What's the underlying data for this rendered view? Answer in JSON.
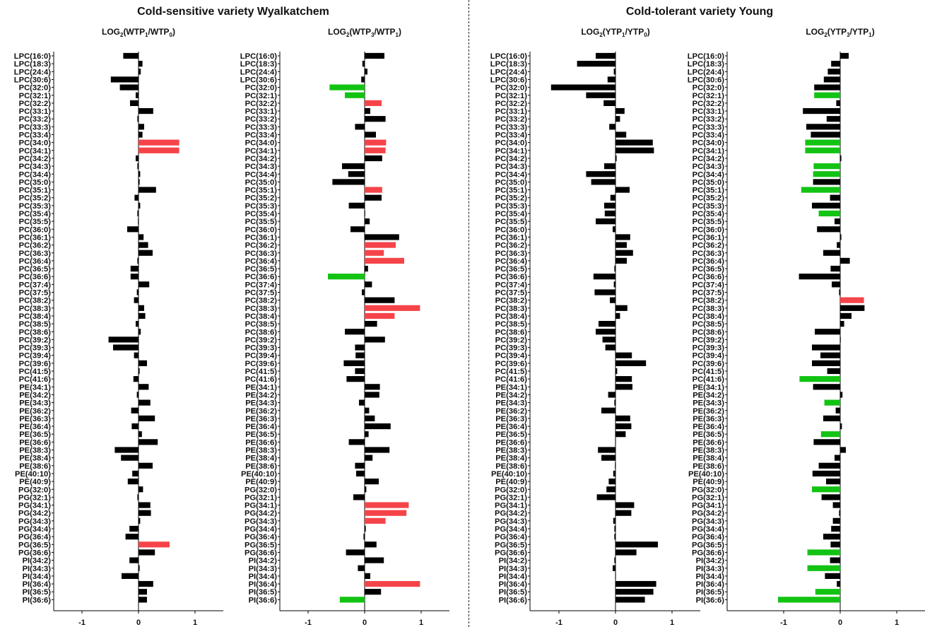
{
  "groups": [
    {
      "title": "Cold-sensitive variety Wyalkatchem"
    },
    {
      "title": "Cold-tolerant variety Young"
    }
  ],
  "colors": {
    "increase": "#f54449",
    "decrease": "#13c313",
    "neutral": "#000000"
  },
  "chart_data": [
    {
      "type": "bar",
      "orientation": "horizontal",
      "title": "LOG2(WTP1/WTP0)",
      "title_parts": {
        "prefix": "LOG",
        "base": "2",
        "open": "(WTP",
        "s1": "1",
        "mid": "/WTP",
        "s2": "0",
        "close": ")"
      },
      "xlim": [
        -1.5,
        1.5
      ],
      "xticks": [
        "-1",
        "0",
        "1"
      ],
      "grid": false,
      "categories": [
        "LPC(16:0)",
        "LPC(18:3)",
        "LPC(24:4)",
        "LPC(30:6)",
        "PC(32:0)",
        "PC(32:1)",
        "PC(32:2)",
        "PC(33:1)",
        "PC(33:2)",
        "PC(33:3)",
        "PC(33:4)",
        "PC(34:0)",
        "PC(34:1)",
        "PC(34:2)",
        "PC(34:3)",
        "PC(34:4)",
        "PC(35:0)",
        "PC(35:1)",
        "PC(35:2)",
        "PC(35:3)",
        "PC(35:4)",
        "PC(35:5)",
        "PC(36:0)",
        "PC(36:1)",
        "PC(36:2)",
        "PC(36:3)",
        "PC(36:4)",
        "PC(36:5)",
        "PC(36:6)",
        "PC(37:4)",
        "PC(37:5)",
        "PC(38:2)",
        "PC(38:3)",
        "PC(38:4)",
        "PC(38:5)",
        "PC(38:6)",
        "PC(39:2)",
        "PC(39:3)",
        "PC(39:4)",
        "PC(39:6)",
        "PC(41:5)",
        "PC(41:6)",
        "PE(34:1)",
        "PE(34:2)",
        "PE(34:3)",
        "PE(36:2)",
        "PE(36:3)",
        "PE(36:4)",
        "PE(36:5)",
        "PE(36:6)",
        "PE(38:3)",
        "PE(38:4)",
        "PE(38:6)",
        "PE(40:10)",
        "PE(40:9)",
        "PG(32:0)",
        "PG(32:1)",
        "PG(34:1)",
        "PG(34:2)",
        "PG(34:3)",
        "PG(34:4)",
        "PG(36:4)",
        "PG(36:5)",
        "PG(36:6)",
        "PI(34:2)",
        "PI(34:3)",
        "PI(34:4)",
        "PI(36:4)",
        "PI(36:5)",
        "PI(36:6)"
      ],
      "values": [
        -0.27,
        0.07,
        0.04,
        -0.49,
        -0.33,
        -0.05,
        -0.15,
        0.26,
        -0.02,
        0.1,
        0.07,
        0.72,
        0.72,
        -0.05,
        -0.02,
        0.03,
        0.02,
        0.31,
        -0.07,
        0.03,
        -0.02,
        -0.01,
        -0.2,
        0.09,
        0.17,
        0.25,
        -0.02,
        -0.14,
        -0.14,
        0.19,
        -0.03,
        -0.08,
        0.1,
        0.12,
        -0.05,
        0.04,
        -0.53,
        -0.45,
        -0.08,
        0.15,
        0.02,
        -0.09,
        0.18,
        -0.03,
        0.21,
        -0.13,
        0.29,
        -0.12,
        0.06,
        0.34,
        -0.42,
        -0.31,
        0.25,
        -0.11,
        -0.19,
        0.08,
        -0.02,
        0.21,
        0.22,
        0.03,
        -0.16,
        -0.23,
        0.55,
        0.29,
        -0.16,
        0.02,
        -0.3,
        0.26,
        0.15,
        0.15
      ],
      "colors": [
        "n",
        "n",
        "n",
        "n",
        "n",
        "n",
        "n",
        "n",
        "n",
        "n",
        "n",
        "r",
        "r",
        "n",
        "n",
        "n",
        "n",
        "n",
        "n",
        "n",
        "n",
        "n",
        "n",
        "n",
        "n",
        "n",
        "n",
        "n",
        "n",
        "n",
        "n",
        "n",
        "n",
        "n",
        "n",
        "n",
        "n",
        "n",
        "n",
        "n",
        "n",
        "n",
        "n",
        "n",
        "n",
        "n",
        "n",
        "n",
        "n",
        "n",
        "n",
        "n",
        "n",
        "n",
        "n",
        "n",
        "n",
        "n",
        "n",
        "n",
        "n",
        "n",
        "r",
        "n",
        "n",
        "n",
        "n",
        "n",
        "n",
        "n"
      ]
    },
    {
      "type": "bar",
      "orientation": "horizontal",
      "title": "LOG2(WTP3/WTP1)",
      "title_parts": {
        "prefix": "LOG",
        "base": "2",
        "open": "(WTP",
        "s1": "3",
        "mid": "/WTP",
        "s2": "1",
        "close": ")"
      },
      "xlim": [
        -1.5,
        1.5
      ],
      "xticks": [
        "-1",
        "0",
        "1"
      ],
      "grid": false,
      "categories": [
        "LPC(16:0)",
        "LPC(18:3)",
        "LPC(24:4)",
        "LPC(30:6)",
        "PC(32:0)",
        "PC(32:1)",
        "PC(32:2)",
        "PC(33:1)",
        "PC(33:2)",
        "PC(33:3)",
        "PC(33:4)",
        "PC(34:0)",
        "PC(34:1)",
        "PC(34:2)",
        "PC(34:3)",
        "PC(34:4)",
        "PC(35:0)",
        "PC(35:1)",
        "PC(35:2)",
        "PC(35:3)",
        "PC(35:4)",
        "PC(35:5)",
        "PC(36:0)",
        "PC(36:1)",
        "PC(36:2)",
        "PC(36:3)",
        "PC(36:4)",
        "PC(36:5)",
        "PC(36:6)",
        "PC(37:4)",
        "PC(37:5)",
        "PC(38:2)",
        "PC(38:3)",
        "PC(38:4)",
        "PC(38:5)",
        "PC(38:6)",
        "PC(39:2)",
        "PC(39:3)",
        "PC(39:4)",
        "PC(39:6)",
        "PC(41:5)",
        "PC(41:6)",
        "PE(34:1)",
        "PE(34:2)",
        "PE(34:3)",
        "PE(36:2)",
        "PE(36:3)",
        "PE(36:4)",
        "PE(36:5)",
        "PE(36:6)",
        "PE(38:3)",
        "PE(38:4)",
        "PE(38:6)",
        "PE(40:10)",
        "PE(40:9)",
        "PG(32:0)",
        "PG(32:1)",
        "PG(34:1)",
        "PG(34:2)",
        "PG(34:3)",
        "PG(34:4)",
        "PG(36:4)",
        "PG(36:5)",
        "PG(36:6)",
        "PI(34:2)",
        "PI(34:3)",
        "PI(34:4)",
        "PI(36:4)",
        "PI(36:5)",
        "PI(36:6)"
      ],
      "values": [
        0.35,
        -0.04,
        0.05,
        -0.06,
        -0.62,
        -0.35,
        0.3,
        0.1,
        0.37,
        -0.17,
        0.2,
        0.38,
        0.37,
        0.31,
        -0.4,
        -0.29,
        -0.57,
        0.31,
        0.3,
        -0.28,
        0.01,
        0.09,
        -0.25,
        0.61,
        0.55,
        0.34,
        0.7,
        0.06,
        -0.65,
        0.13,
        -0.05,
        0.53,
        0.98,
        0.53,
        0.22,
        -0.35,
        0.36,
        -0.17,
        -0.16,
        -0.37,
        -0.17,
        -0.32,
        0.27,
        0.26,
        -0.1,
        0.08,
        0.18,
        0.46,
        0.07,
        -0.28,
        0.44,
        0.14,
        -0.17,
        -0.15,
        0.25,
        0.03,
        -0.2,
        0.78,
        0.74,
        0.37,
        0.02,
        -0.02,
        0.21,
        -0.33,
        0.34,
        -0.12,
        0.1,
        0.98,
        0.29,
        -0.44
      ],
      "colors": [
        "n",
        "n",
        "n",
        "n",
        "g",
        "g",
        "r",
        "n",
        "n",
        "n",
        "n",
        "r",
        "r",
        "n",
        "n",
        "n",
        "n",
        "r",
        "n",
        "n",
        "n",
        "n",
        "n",
        "n",
        "r",
        "r",
        "r",
        "n",
        "g",
        "n",
        "n",
        "n",
        "r",
        "r",
        "n",
        "n",
        "n",
        "n",
        "n",
        "n",
        "n",
        "n",
        "n",
        "n",
        "n",
        "n",
        "n",
        "n",
        "n",
        "n",
        "n",
        "n",
        "n",
        "n",
        "n",
        "n",
        "n",
        "r",
        "r",
        "r",
        "n",
        "n",
        "n",
        "n",
        "n",
        "n",
        "n",
        "r",
        "n",
        "g"
      ]
    },
    {
      "type": "bar",
      "orientation": "horizontal",
      "title": "LOG2(YTP1/YTP0)",
      "title_parts": {
        "prefix": "LOG",
        "base": "2",
        "open": "(YTP",
        "s1": "1",
        "mid": "/YTP",
        "s2": "0",
        "close": ")"
      },
      "xlim": [
        -1.5,
        1.5
      ],
      "xticks": [
        "-1",
        "0",
        "1"
      ],
      "grid": false,
      "categories": [
        "LPC(16:0)",
        "LPC(18:3)",
        "LPC(24:4)",
        "LPC(30:6)",
        "PC(32:0)",
        "PC(32:1)",
        "PC(32:2)",
        "PC(33:1)",
        "PC(33:2)",
        "PC(33:3)",
        "PC(33:4)",
        "PC(34:0)",
        "PC(34:1)",
        "PC(34:2)",
        "PC(34:3)",
        "PC(34:4)",
        "PC(35:0)",
        "PC(35:1)",
        "PC(35:2)",
        "PC(35:3)",
        "PC(35:4)",
        "PC(35:5)",
        "PC(36:0)",
        "PC(36:1)",
        "PC(36:2)",
        "PC(36:3)",
        "PC(36:4)",
        "PC(36:5)",
        "PC(36:6)",
        "PC(37:4)",
        "PC(37:5)",
        "PC(38:2)",
        "PC(38:3)",
        "PC(38:4)",
        "PC(38:5)",
        "PC(38:6)",
        "PC(39:2)",
        "PC(39:3)",
        "PC(39:4)",
        "PC(39:6)",
        "PC(41:5)",
        "PC(41:6)",
        "PE(34:1)",
        "PE(34:2)",
        "PE(34:3)",
        "PE(36:2)",
        "PE(36:3)",
        "PE(36:4)",
        "PE(36:5)",
        "PE(36:6)",
        "PE(38:3)",
        "PE(38:4)",
        "PE(38:6)",
        "PE(40:10)",
        "PE(40:9)",
        "PG(32:0)",
        "PG(32:1)",
        "PG(34:1)",
        "PG(34:2)",
        "PG(34:3)",
        "PG(34:4)",
        "PG(36:4)",
        "PG(36:5)",
        "PG(36:6)",
        "PI(34:2)",
        "PI(34:3)",
        "PI(34:4)",
        "PI(36:4)",
        "PI(36:5)",
        "PI(36:6)"
      ],
      "values": [
        -0.35,
        -0.68,
        -0.03,
        -0.14,
        -1.14,
        -0.52,
        -0.21,
        0.16,
        0.08,
        -0.11,
        0.19,
        0.66,
        0.68,
        0.02,
        -0.2,
        -0.52,
        -0.43,
        0.25,
        -0.09,
        -0.2,
        -0.19,
        -0.35,
        -0.05,
        0.26,
        0.2,
        0.31,
        0.2,
        -0.02,
        -0.39,
        -0.03,
        -0.37,
        -0.1,
        0.21,
        0.08,
        -0.3,
        -0.35,
        -0.23,
        -0.18,
        0.29,
        0.54,
        0.03,
        0.29,
        0.3,
        -0.13,
        -0.02,
        -0.25,
        0.26,
        0.28,
        0.18,
        0.0,
        -0.31,
        -0.25,
        -0.01,
        -0.04,
        -0.12,
        -0.16,
        -0.33,
        0.33,
        0.28,
        -0.04,
        -0.02,
        -0.02,
        0.75,
        0.37,
        -0.02,
        -0.05,
        0.0,
        0.72,
        0.67,
        0.52
      ],
      "colors": [
        "n",
        "n",
        "n",
        "n",
        "n",
        "n",
        "n",
        "n",
        "n",
        "n",
        "n",
        "n",
        "n",
        "n",
        "n",
        "n",
        "n",
        "n",
        "n",
        "n",
        "n",
        "n",
        "n",
        "n",
        "n",
        "n",
        "n",
        "n",
        "n",
        "n",
        "n",
        "n",
        "n",
        "n",
        "n",
        "n",
        "n",
        "n",
        "n",
        "n",
        "n",
        "n",
        "n",
        "n",
        "n",
        "n",
        "n",
        "n",
        "n",
        "n",
        "n",
        "n",
        "n",
        "n",
        "n",
        "n",
        "n",
        "n",
        "n",
        "n",
        "n",
        "n",
        "n",
        "n",
        "n",
        "n",
        "n",
        "n",
        "n",
        "n"
      ]
    },
    {
      "type": "bar",
      "orientation": "horizontal",
      "title": "LOG2(YTP3/YTP1)",
      "title_parts": {
        "prefix": "LOG",
        "base": "2",
        "open": "(YTP",
        "s1": "3",
        "mid": "/YTP",
        "s2": "1",
        "close": ")"
      },
      "xlim": [
        -1.5,
        1.5
      ],
      "xticks": [
        "-1",
        "0",
        "1"
      ],
      "grid": false,
      "categories": [
        "LPC(16:0)",
        "LPC(18:3)",
        "LPC(24:4)",
        "LPC(30:6)",
        "PC(32:0)",
        "PC(32:1)",
        "PC(32:2)",
        "PC(33:1)",
        "PC(33:2)",
        "PC(33:3)",
        "PC(33:4)",
        "PC(34:0)",
        "PC(34:1)",
        "PC(34:2)",
        "PC(34:3)",
        "PC(34:4)",
        "PC(35:0)",
        "PC(35:1)",
        "PC(35:2)",
        "PC(35:3)",
        "PC(35:4)",
        "PC(35:5)",
        "PC(36:0)",
        "PC(36:1)",
        "PC(36:2)",
        "PC(36:3)",
        "PC(36:4)",
        "PC(36:5)",
        "PC(36:6)",
        "PC(37:4)",
        "PC(37:5)",
        "PC(38:2)",
        "PC(38:3)",
        "PC(38:4)",
        "PC(38:5)",
        "PC(38:6)",
        "PC(39:2)",
        "PC(39:3)",
        "PC(39:4)",
        "PC(39:6)",
        "PC(41:5)",
        "PC(41:6)",
        "PE(34:1)",
        "PE(34:2)",
        "PE(34:3)",
        "PE(36:2)",
        "PE(36:3)",
        "PE(36:4)",
        "PE(36:5)",
        "PE(36:6)",
        "PE(38:3)",
        "PE(38:4)",
        "PE(38:6)",
        "PE(40:10)",
        "PE(40:9)",
        "PG(32:0)",
        "PG(32:1)",
        "PG(34:1)",
        "PG(34:2)",
        "PG(34:3)",
        "PG(34:4)",
        "PG(36:4)",
        "PG(36:5)",
        "PG(36:6)",
        "PI(34:2)",
        "PI(34:3)",
        "PI(34:4)",
        "PI(36:4)",
        "PI(36:5)",
        "PI(36:6)"
      ],
      "values": [
        0.15,
        -0.16,
        -0.22,
        -0.29,
        -0.46,
        -0.46,
        -0.07,
        -0.66,
        -0.24,
        -0.6,
        -0.52,
        -0.62,
        -0.62,
        0.02,
        -0.47,
        -0.48,
        -0.48,
        -0.69,
        -0.18,
        -0.5,
        -0.38,
        -0.1,
        -0.41,
        0.02,
        -0.06,
        -0.3,
        0.17,
        -0.17,
        -0.73,
        -0.15,
        -0.02,
        0.42,
        0.43,
        0.2,
        0.07,
        -0.45,
        0.01,
        -0.5,
        -0.35,
        -0.5,
        -0.23,
        -0.72,
        -0.48,
        0.04,
        -0.28,
        -0.08,
        -0.3,
        0.03,
        -0.34,
        -0.47,
        0.1,
        -0.1,
        -0.38,
        -0.49,
        -0.25,
        -0.5,
        -0.33,
        -0.13,
        -0.02,
        -0.13,
        -0.16,
        -0.3,
        -0.17,
        -0.58,
        -0.18,
        -0.58,
        -0.27,
        -0.06,
        -0.44,
        -1.1
      ],
      "colors": [
        "n",
        "n",
        "n",
        "n",
        "n",
        "g",
        "n",
        "n",
        "n",
        "n",
        "n",
        "g",
        "g",
        "n",
        "g",
        "g",
        "n",
        "g",
        "n",
        "n",
        "g",
        "n",
        "n",
        "n",
        "n",
        "n",
        "n",
        "n",
        "n",
        "n",
        "n",
        "r",
        "n",
        "n",
        "n",
        "n",
        "n",
        "n",
        "n",
        "n",
        "n",
        "g",
        "n",
        "n",
        "g",
        "n",
        "n",
        "n",
        "g",
        "n",
        "n",
        "n",
        "n",
        "n",
        "n",
        "g",
        "n",
        "n",
        "n",
        "n",
        "n",
        "n",
        "n",
        "g",
        "n",
        "g",
        "n",
        "n",
        "g",
        "g"
      ]
    }
  ]
}
